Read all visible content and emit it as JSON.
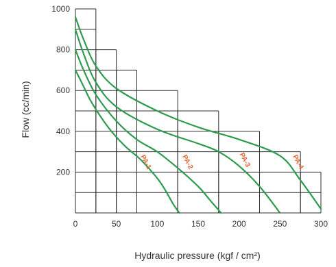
{
  "chart_data": {
    "type": "line",
    "xlabel": "Hydraulic pressure (kgf / cm²)",
    "ylabel": "Flow (cc/min)",
    "xlim": [
      0,
      300
    ],
    "ylim": [
      0,
      1000
    ],
    "x_ticks": [
      "0",
      "50",
      "100",
      "150",
      "200",
      "250",
      "300"
    ],
    "y_ticks": [
      "200",
      "400",
      "600",
      "800",
      "1000"
    ],
    "grid": true,
    "colors": {
      "curve": "#2e9a4e",
      "label": "#e8622c",
      "grid": "#2b2b2b"
    },
    "grid_steps": [
      {
        "x": [
          0,
          25
        ],
        "top": 1000
      },
      {
        "x": [
          25,
          50
        ],
        "top": 800
      },
      {
        "x": [
          50,
          75
        ],
        "top": 700
      },
      {
        "x": [
          75,
          125
        ],
        "top": 600
      },
      {
        "x": [
          125,
          175
        ],
        "top": 500
      },
      {
        "x": [
          175,
          225
        ],
        "top": 400
      },
      {
        "x": [
          225,
          275
        ],
        "top": 300
      },
      {
        "x": [
          275,
          300
        ],
        "top": 200
      }
    ],
    "series": [
      {
        "name": "PA-1",
        "x": [
          0,
          10,
          20,
          40,
          60,
          80,
          100,
          110,
          120,
          127
        ],
        "y": [
          700,
          620,
          540,
          420,
          330,
          260,
          170,
          110,
          40,
          0
        ]
      },
      {
        "name": "PA-2",
        "x": [
          0,
          10,
          25,
          50,
          75,
          100,
          125,
          150,
          165,
          178
        ],
        "y": [
          800,
          700,
          580,
          450,
          360,
          300,
          220,
          130,
          60,
          0
        ]
      },
      {
        "name": "PA-3",
        "x": [
          0,
          10,
          25,
          50,
          100,
          150,
          175,
          200,
          225,
          250
        ],
        "y": [
          900,
          780,
          640,
          520,
          410,
          340,
          300,
          230,
          130,
          0
        ]
      },
      {
        "name": "PA-4",
        "x": [
          0,
          10,
          25,
          50,
          100,
          150,
          200,
          250,
          275,
          300
        ],
        "y": [
          960,
          850,
          720,
          610,
          500,
          420,
          360,
          280,
          160,
          20
        ]
      }
    ],
    "annotations": [
      {
        "text": "PA-1",
        "x": 84,
        "y": 245
      },
      {
        "text": "PA-2",
        "x": 135,
        "y": 245
      },
      {
        "text": "PA-3",
        "x": 205,
        "y": 255
      },
      {
        "text": "PA-4",
        "x": 270,
        "y": 245
      }
    ]
  }
}
